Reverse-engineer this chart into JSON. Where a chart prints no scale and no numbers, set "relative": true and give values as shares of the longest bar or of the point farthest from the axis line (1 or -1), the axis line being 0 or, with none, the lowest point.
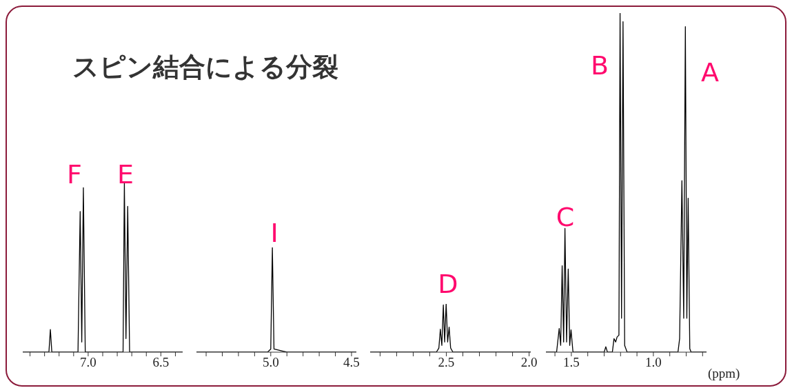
{
  "chart_data": [
    {
      "type": "line",
      "title": "スピン結合による分裂",
      "relative": true,
      "xlim": [
        7.45,
        6.35
      ],
      "xticks": [
        {
          "value": 7.4,
          "label": null
        },
        {
          "value": 7.3,
          "label": null
        },
        {
          "value": 7.2,
          "label": null
        },
        {
          "value": 7.1,
          "label": null
        },
        {
          "value": 7.0,
          "label": "7.0"
        },
        {
          "value": 6.9,
          "label": null
        },
        {
          "value": 6.8,
          "label": null
        },
        {
          "value": 6.7,
          "label": null
        },
        {
          "value": 6.6,
          "label": null
        },
        {
          "value": 6.5,
          "label": "6.5"
        },
        {
          "value": 6.4,
          "label": null
        }
      ],
      "x": [
        7.45,
        7.27,
        7.26,
        7.25,
        7.07,
        7.055,
        7.044,
        7.033,
        7.02,
        7.0,
        6.76,
        6.751,
        6.74,
        6.728,
        6.715,
        6.68,
        6.35
      ],
      "values": [
        0,
        0,
        0.134,
        0,
        0,
        0.83,
        0.06,
        0.97,
        0,
        0,
        0,
        1.0,
        0.08,
        0.86,
        0,
        0,
        0
      ],
      "color": "#000000",
      "annotations": [
        "F",
        "E"
      ]
    },
    {
      "type": "line",
      "relative": true,
      "xlim": [
        5.46,
        4.47
      ],
      "xticks": [
        {
          "value": 5.4,
          "label": null
        },
        {
          "value": 5.3,
          "label": null
        },
        {
          "value": 5.2,
          "label": null
        },
        {
          "value": 5.1,
          "label": null
        },
        {
          "value": 5.0,
          "label": "5.0"
        },
        {
          "value": 4.9,
          "label": null
        },
        {
          "value": 4.8,
          "label": null
        },
        {
          "value": 4.7,
          "label": null
        },
        {
          "value": 4.6,
          "label": null
        },
        {
          "value": 4.5,
          "label": "4.5"
        }
      ],
      "x": [
        5.46,
        5.02,
        5.0,
        4.99,
        4.98,
        4.9,
        4.47
      ],
      "values": [
        0,
        0,
        0.03,
        1.0,
        0.03,
        0,
        0
      ],
      "color": "#000000",
      "annotations": [
        "I"
      ]
    },
    {
      "type": "line",
      "relative": true,
      "xlim": [
        2.96,
        1.99
      ],
      "xticks": [
        {
          "value": 2.9,
          "label": null
        },
        {
          "value": 2.8,
          "label": null
        },
        {
          "value": 2.7,
          "label": null
        },
        {
          "value": 2.6,
          "label": null
        },
        {
          "value": 2.5,
          "label": "2.5"
        },
        {
          "value": 2.4,
          "label": null
        },
        {
          "value": 2.3,
          "label": null
        },
        {
          "value": 2.2,
          "label": null
        },
        {
          "value": 2.1,
          "label": null
        },
        {
          "value": 2.0,
          "label": "2.0"
        }
      ],
      "x": [
        2.96,
        2.56,
        2.545,
        2.536,
        2.527,
        2.518,
        2.51,
        2.501,
        2.492,
        2.483,
        2.474,
        2.46,
        1.99
      ],
      "values": [
        0,
        0,
        0.085,
        0.475,
        0.14,
        0.98,
        0.21,
        1.0,
        0.21,
        0.52,
        0.085,
        0,
        0
      ],
      "color": "#000000",
      "annotations": [
        "D"
      ]
    },
    {
      "type": "line",
      "relative": true,
      "xlabel": "(ppm)",
      "xlim": [
        1.655,
        0.676
      ],
      "xticks": [
        {
          "value": 1.6,
          "label": null
        },
        {
          "value": 1.5,
          "label": "1.5"
        },
        {
          "value": 1.4,
          "label": null
        },
        {
          "value": 1.3,
          "label": null
        },
        {
          "value": 1.2,
          "label": null
        },
        {
          "value": 1.1,
          "label": null
        },
        {
          "value": 1.0,
          "label": "1.0"
        },
        {
          "value": 0.9,
          "label": null
        },
        {
          "value": 0.8,
          "label": null
        },
        {
          "value": 0.7,
          "label": null
        }
      ],
      "x": [
        1.655,
        1.59,
        1.574,
        1.565,
        1.556,
        1.547,
        1.539,
        1.529,
        1.519,
        1.51,
        1.502,
        1.49,
        1.3,
        1.29,
        1.28,
        1.25,
        1.24,
        1.23,
        1.221,
        1.21,
        1.203,
        1.194,
        1.185,
        1.175,
        1.16,
        0.85,
        0.84,
        0.826,
        0.815,
        0.805,
        0.796,
        0.788,
        0.778,
        0.77,
        0.676
      ],
      "values": [
        0,
        0,
        0.07,
        0.02,
        0.255,
        0.03,
        0.365,
        0.03,
        0.245,
        0.02,
        0.066,
        0,
        0,
        0.016,
        0,
        0,
        0.04,
        0.03,
        0.045,
        0.05,
        1.0,
        0.1,
        0.975,
        0.02,
        0,
        0,
        0.04,
        0.506,
        0.1,
        0.96,
        0.1,
        0.454,
        0.01,
        0,
        0
      ],
      "color": "#000000",
      "annotations": [
        "C",
        "B",
        "A"
      ]
    }
  ]
}
